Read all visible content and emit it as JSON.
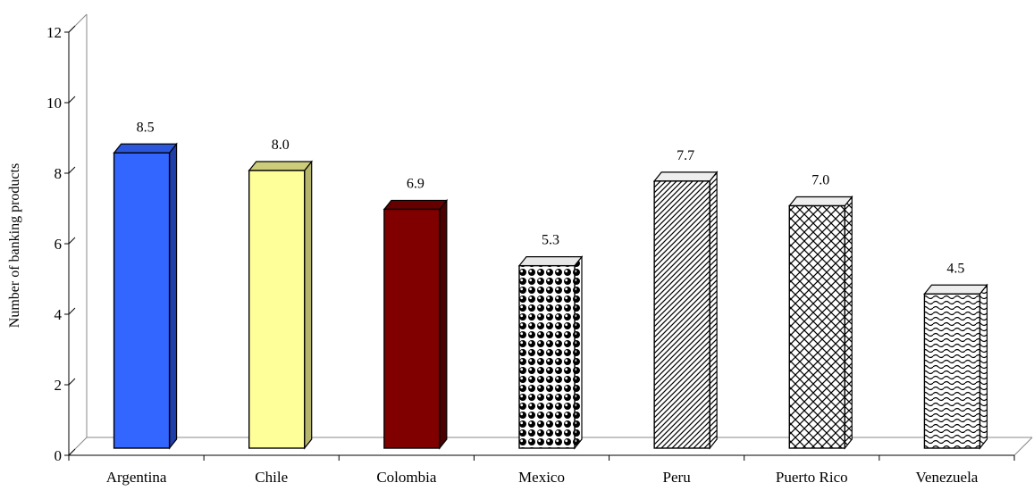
{
  "chart_data": {
    "type": "bar",
    "title": "",
    "xlabel": "",
    "ylabel": "Number of banking products",
    "ylim": [
      0,
      12
    ],
    "yticks": [
      0,
      2,
      4,
      6,
      8,
      10,
      12
    ],
    "grid": false,
    "legend": "none",
    "categories": [
      "Argentina",
      "Chile",
      "Colombia",
      "Mexico",
      "Peru",
      "Puerto Rico",
      "Venezuela"
    ],
    "values": [
      8.5,
      8.0,
      6.9,
      5.3,
      7.7,
      7.0,
      4.5
    ],
    "data_labels": [
      "8.5",
      "8.0",
      "6.9",
      "5.3",
      "7.7",
      "7.0",
      "4.5"
    ],
    "bar_styles": [
      {
        "fill": "#3366ff",
        "side": "#1f3fa8",
        "top": "#2b57dd",
        "pattern": "solid"
      },
      {
        "fill": "#ffff99",
        "side": "#b5b56c",
        "top": "#cccc7a",
        "pattern": "solid"
      },
      {
        "fill": "#800000",
        "side": "#4d0000",
        "top": "#660000",
        "pattern": "solid"
      },
      {
        "fill": "#ffffff",
        "side": "#cccccc",
        "top": "#e8e8e8",
        "pattern": "spheres"
      },
      {
        "fill": "#ffffff",
        "side": "#dddddd",
        "top": "#eeeeee",
        "pattern": "diagonal"
      },
      {
        "fill": "#ffffff",
        "side": "#dddddd",
        "top": "#eeeeee",
        "pattern": "crosshatch"
      },
      {
        "fill": "#ffffff",
        "side": "#dddddd",
        "top": "#eeeeee",
        "pattern": "wave"
      }
    ]
  }
}
